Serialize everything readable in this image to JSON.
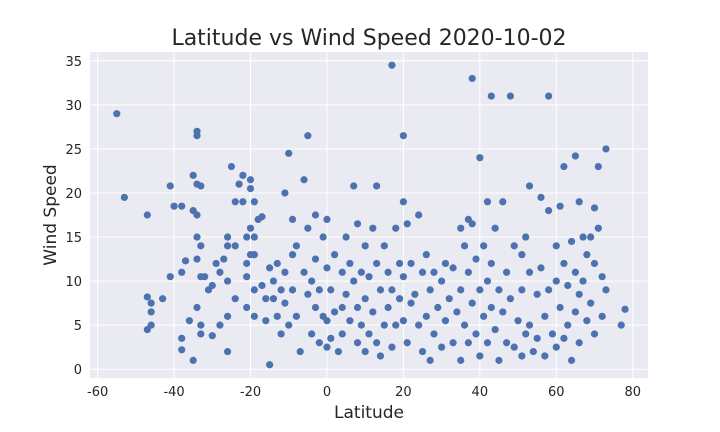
{
  "chart_data": {
    "type": "scatter",
    "title": "Latitude vs Wind Speed 2020-10-02",
    "xlabel": "Latitude",
    "ylabel": "Wind Speed",
    "xlim": [
      -62,
      84
    ],
    "ylim": [
      -1,
      36
    ],
    "xticks": [
      -60,
      -40,
      -20,
      0,
      20,
      40,
      60,
      80
    ],
    "yticks": [
      0,
      5,
      10,
      15,
      20,
      25,
      30,
      35
    ],
    "grid": true,
    "background": "#eaeaf2",
    "point_color": "#4c72b0",
    "points": [
      [
        -55,
        29
      ],
      [
        -53,
        19.5
      ],
      [
        -47,
        17.5
      ],
      [
        -47,
        8.2
      ],
      [
        -46,
        7.5
      ],
      [
        -46,
        5
      ],
      [
        -46,
        6.5
      ],
      [
        -47,
        4.5
      ],
      [
        -43,
        8
      ],
      [
        -41,
        20.8
      ],
      [
        -41,
        10.5
      ],
      [
        -40,
        18.5
      ],
      [
        -38,
        18.5
      ],
      [
        -38,
        11
      ],
      [
        -37,
        12.3
      ],
      [
        -38,
        3.5
      ],
      [
        -38,
        2.2
      ],
      [
        -36,
        5.5
      ],
      [
        -35,
        22
      ],
      [
        -35,
        18
      ],
      [
        -34,
        27
      ],
      [
        -34,
        26.5
      ],
      [
        -33,
        20.8
      ],
      [
        -34,
        21
      ],
      [
        -34,
        17.5
      ],
      [
        -34,
        15
      ],
      [
        -33,
        14
      ],
      [
        -34,
        12.5
      ],
      [
        -33,
        10.5
      ],
      [
        -34,
        7
      ],
      [
        -33,
        5
      ],
      [
        -33,
        4
      ],
      [
        -35,
        1
      ],
      [
        -32,
        10.5
      ],
      [
        -31,
        9
      ],
      [
        -30,
        9.5
      ],
      [
        -30,
        3.8
      ],
      [
        -29,
        12
      ],
      [
        -28,
        11
      ],
      [
        -28,
        5
      ],
      [
        -27,
        12.5
      ],
      [
        -26,
        15
      ],
      [
        -26,
        14
      ],
      [
        -26,
        10
      ],
      [
        -26,
        6
      ],
      [
        -26,
        2
      ],
      [
        -25,
        23
      ],
      [
        -24,
        19
      ],
      [
        -24,
        14
      ],
      [
        -24,
        8
      ],
      [
        -23,
        21
      ],
      [
        -22,
        22
      ],
      [
        -22,
        19
      ],
      [
        -21,
        15
      ],
      [
        -21,
        12
      ],
      [
        -20,
        16
      ],
      [
        -20,
        13
      ],
      [
        -21,
        10.5
      ],
      [
        -21,
        7
      ],
      [
        -20,
        21.5
      ],
      [
        -20,
        20.5
      ],
      [
        -19,
        19
      ],
      [
        -19,
        15
      ],
      [
        -19,
        13
      ],
      [
        -19,
        9
      ],
      [
        -19,
        6
      ],
      [
        -18,
        17
      ],
      [
        -17,
        17.3
      ],
      [
        -17,
        9.5
      ],
      [
        -16,
        8
      ],
      [
        -16,
        5.5
      ],
      [
        -15,
        11.5
      ],
      [
        -15,
        0.5
      ],
      [
        -14,
        10
      ],
      [
        -14,
        8
      ],
      [
        -13,
        12
      ],
      [
        -13,
        6
      ],
      [
        -12,
        9
      ],
      [
        -12,
        4
      ],
      [
        -11,
        20
      ],
      [
        -11,
        11
      ],
      [
        -11,
        7.5
      ],
      [
        -10,
        24.5
      ],
      [
        -10,
        5
      ],
      [
        -9,
        17
      ],
      [
        -9,
        13
      ],
      [
        -9,
        9
      ],
      [
        -8,
        14
      ],
      [
        -8,
        6
      ],
      [
        -7,
        2
      ],
      [
        -6,
        21.5
      ],
      [
        -6,
        11
      ],
      [
        -5,
        26.5
      ],
      [
        -5,
        16
      ],
      [
        -5,
        8.5
      ],
      [
        -4,
        10
      ],
      [
        -4,
        4
      ],
      [
        -3,
        17.5
      ],
      [
        -3,
        12.5
      ],
      [
        -3,
        7
      ],
      [
        -2,
        9
      ],
      [
        -2,
        3
      ],
      [
        -1,
        15
      ],
      [
        -1,
        6
      ],
      [
        0,
        17
      ],
      [
        0,
        11.5
      ],
      [
        0,
        5.5
      ],
      [
        0,
        2.5
      ],
      [
        1,
        9
      ],
      [
        1,
        3.5
      ],
      [
        2,
        13
      ],
      [
        2,
        6.5
      ],
      [
        3,
        2
      ],
      [
        4,
        11
      ],
      [
        4,
        7
      ],
      [
        4,
        4
      ],
      [
        5,
        15
      ],
      [
        5,
        8.5
      ],
      [
        6,
        12
      ],
      [
        6,
        5.5
      ],
      [
        7,
        20.8
      ],
      [
        7,
        10
      ],
      [
        8,
        16.5
      ],
      [
        8,
        7
      ],
      [
        8,
        3
      ],
      [
        9,
        11
      ],
      [
        9,
        5
      ],
      [
        10,
        14
      ],
      [
        10,
        8
      ],
      [
        10,
        2
      ],
      [
        11,
        10.5
      ],
      [
        11,
        4
      ],
      [
        12,
        16
      ],
      [
        12,
        6.5
      ],
      [
        13,
        20.8
      ],
      [
        13,
        12
      ],
      [
        13,
        3
      ],
      [
        14,
        9
      ],
      [
        14,
        1.5
      ],
      [
        15,
        14
      ],
      [
        15,
        5
      ],
      [
        16,
        11
      ],
      [
        16,
        7
      ],
      [
        17,
        34.5
      ],
      [
        17,
        9
      ],
      [
        17,
        2.5
      ],
      [
        18,
        16
      ],
      [
        18,
        5
      ],
      [
        19,
        12
      ],
      [
        19,
        8
      ],
      [
        20,
        26.5
      ],
      [
        20,
        19
      ],
      [
        20,
        10.5
      ],
      [
        20,
        5.5
      ],
      [
        21,
        16.5
      ],
      [
        21,
        3
      ],
      [
        22,
        12
      ],
      [
        22,
        7.5
      ],
      [
        23,
        8.5
      ],
      [
        24,
        17.5
      ],
      [
        24,
        5
      ],
      [
        25,
        11
      ],
      [
        25,
        2
      ],
      [
        26,
        13
      ],
      [
        26,
        6
      ],
      [
        27,
        9
      ],
      [
        27,
        1
      ],
      [
        28,
        11
      ],
      [
        28,
        4
      ],
      [
        29,
        7
      ],
      [
        30,
        10
      ],
      [
        30,
        2.5
      ],
      [
        31,
        12
      ],
      [
        31,
        5.5
      ],
      [
        32,
        8
      ],
      [
        33,
        11.5
      ],
      [
        33,
        3
      ],
      [
        34,
        6.5
      ],
      [
        35,
        16
      ],
      [
        35,
        9
      ],
      [
        35,
        1
      ],
      [
        36,
        14
      ],
      [
        36,
        5
      ],
      [
        37,
        17
      ],
      [
        37,
        11
      ],
      [
        37,
        3
      ],
      [
        38,
        33
      ],
      [
        38,
        16.5
      ],
      [
        38,
        7.5
      ],
      [
        39,
        12.5
      ],
      [
        39,
        4
      ],
      [
        40,
        24
      ],
      [
        40,
        9
      ],
      [
        40,
        1.5
      ],
      [
        41,
        14
      ],
      [
        41,
        6
      ],
      [
        42,
        19
      ],
      [
        42,
        10
      ],
      [
        42,
        3
      ],
      [
        43,
        31
      ],
      [
        43,
        12
      ],
      [
        43,
        7
      ],
      [
        44,
        16
      ],
      [
        44,
        4.5
      ],
      [
        45,
        9
      ],
      [
        45,
        1
      ],
      [
        46,
        19
      ],
      [
        46,
        6.5
      ],
      [
        47,
        11
      ],
      [
        47,
        3
      ],
      [
        48,
        31
      ],
      [
        48,
        8
      ],
      [
        49,
        14
      ],
      [
        49,
        2.5
      ],
      [
        50,
        5.5
      ],
      [
        51,
        13
      ],
      [
        51,
        9
      ],
      [
        51,
        1.5
      ],
      [
        52,
        15
      ],
      [
        52,
        4
      ],
      [
        53,
        20.8
      ],
      [
        53,
        11
      ],
      [
        53,
        5
      ],
      [
        54,
        2
      ],
      [
        55,
        8.5
      ],
      [
        55,
        3.5
      ],
      [
        56,
        19.5
      ],
      [
        56,
        11.5
      ],
      [
        57,
        6
      ],
      [
        57,
        1.5
      ],
      [
        58,
        31
      ],
      [
        58,
        18
      ],
      [
        58,
        9
      ],
      [
        59,
        4
      ],
      [
        60,
        14
      ],
      [
        60,
        10
      ],
      [
        60,
        2.5
      ],
      [
        61,
        18.5
      ],
      [
        61,
        7
      ],
      [
        62,
        23
      ],
      [
        62,
        12
      ],
      [
        62,
        3.5
      ],
      [
        63,
        9.5
      ],
      [
        63,
        5
      ],
      [
        64,
        14.5
      ],
      [
        64,
        1
      ],
      [
        65,
        24.2
      ],
      [
        65,
        11
      ],
      [
        65,
        6.5
      ],
      [
        66,
        19
      ],
      [
        66,
        8.5
      ],
      [
        66,
        3
      ],
      [
        67,
        15
      ],
      [
        67,
        10
      ],
      [
        68,
        13
      ],
      [
        68,
        5.5
      ],
      [
        69,
        15
      ],
      [
        69,
        7.5
      ],
      [
        70,
        18.3
      ],
      [
        70,
        12
      ],
      [
        70,
        4
      ],
      [
        71,
        23
      ],
      [
        71,
        16
      ],
      [
        72,
        10.5
      ],
      [
        72,
        6
      ],
      [
        73,
        25
      ],
      [
        73,
        9
      ],
      [
        77,
        5
      ],
      [
        78,
        6.8
      ]
    ]
  }
}
